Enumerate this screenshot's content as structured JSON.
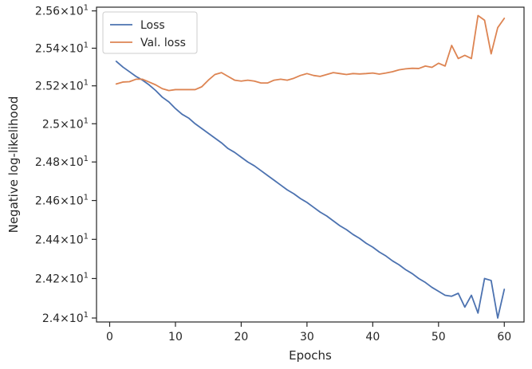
{
  "chart_data": {
    "type": "line",
    "xlabel": "Epochs",
    "ylabel": "Negative log-likelihood",
    "xlim": [
      -2,
      63
    ],
    "ylim": [
      23.98,
      25.62
    ],
    "yscale": "log",
    "grid": false,
    "legend_position": "top-left",
    "x_ticks": [
      0,
      10,
      20,
      30,
      40,
      50,
      60
    ],
    "x_tick_labels": [
      "0",
      "10",
      "20",
      "30",
      "40",
      "50",
      "60"
    ],
    "y_ticks": [
      24.0,
      24.2,
      24.4,
      24.6,
      24.8,
      25.0,
      25.2,
      25.4,
      25.6
    ],
    "y_tick_labels": [
      {
        "mant": "2.4",
        "exp": "1"
      },
      {
        "mant": "2.42",
        "exp": "1"
      },
      {
        "mant": "2.44",
        "exp": "1"
      },
      {
        "mant": "2.46",
        "exp": "1"
      },
      {
        "mant": "2.48",
        "exp": "1"
      },
      {
        "mant": "2.5",
        "exp": "1"
      },
      {
        "mant": "2.52",
        "exp": "1"
      },
      {
        "mant": "2.54",
        "exp": "1"
      },
      {
        "mant": "2.56",
        "exp": "1"
      }
    ],
    "x": [
      1,
      2,
      3,
      4,
      5,
      6,
      7,
      8,
      9,
      10,
      11,
      12,
      13,
      14,
      15,
      16,
      17,
      18,
      19,
      20,
      21,
      22,
      23,
      24,
      25,
      26,
      27,
      28,
      29,
      30,
      31,
      32,
      33,
      34,
      35,
      36,
      37,
      38,
      39,
      40,
      41,
      42,
      43,
      44,
      45,
      46,
      47,
      48,
      49,
      50,
      51,
      52,
      53,
      54,
      55,
      56,
      57,
      58,
      59,
      60
    ],
    "series": [
      {
        "name": "Loss",
        "color": "#4c72b0",
        "values": [
          25.33,
          25.3,
          25.275,
          25.25,
          25.23,
          25.205,
          25.175,
          25.14,
          25.115,
          25.08,
          25.05,
          25.03,
          25.0,
          24.975,
          24.95,
          24.925,
          24.9,
          24.87,
          24.85,
          24.825,
          24.8,
          24.78,
          24.755,
          24.73,
          24.705,
          24.68,
          24.655,
          24.635,
          24.61,
          24.59,
          24.565,
          24.54,
          24.52,
          24.495,
          24.47,
          24.45,
          24.425,
          24.405,
          24.38,
          24.36,
          24.335,
          24.315,
          24.29,
          24.27,
          24.245,
          24.225,
          24.2,
          24.18,
          24.155,
          24.135,
          24.115,
          24.11,
          24.125,
          24.055,
          24.115,
          24.025,
          24.2,
          24.19,
          24.0,
          24.145
        ]
      },
      {
        "name": "Val. loss",
        "color": "#dd8452",
        "values": [
          25.21,
          25.22,
          25.222,
          25.235,
          25.235,
          25.22,
          25.205,
          25.185,
          25.175,
          25.18,
          25.18,
          25.18,
          25.18,
          25.195,
          25.23,
          25.26,
          25.27,
          25.25,
          25.23,
          25.225,
          25.23,
          25.225,
          25.215,
          25.215,
          25.23,
          25.235,
          25.23,
          25.24,
          25.255,
          25.265,
          25.255,
          25.25,
          25.26,
          25.27,
          25.265,
          25.26,
          25.265,
          25.263,
          25.265,
          25.268,
          25.262,
          25.268,
          25.275,
          25.285,
          25.29,
          25.293,
          25.292,
          25.305,
          25.298,
          25.32,
          25.305,
          25.415,
          25.345,
          25.362,
          25.345,
          25.575,
          25.55,
          25.37,
          25.51,
          25.56
        ]
      }
    ]
  }
}
